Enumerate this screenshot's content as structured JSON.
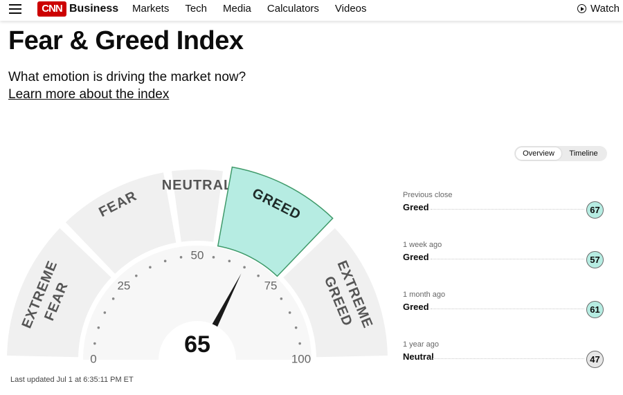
{
  "header": {
    "brand_mark": "CNN",
    "brand_text": "Business",
    "nav": [
      "Markets",
      "Tech",
      "Media",
      "Calculators",
      "Videos"
    ],
    "watch_label": "Watch"
  },
  "page": {
    "title": "Fear & Greed Index",
    "subtitle": "What emotion is driving the market now?",
    "learn_more": "Learn more about the index"
  },
  "toggle": {
    "overview": "Overview",
    "timeline": "Timeline",
    "active": "Overview"
  },
  "gauge": {
    "value": 65,
    "value_label": "65",
    "active_zone": "GREED",
    "zones": [
      {
        "from": 0,
        "to": 25,
        "label1": "EXTREME",
        "label2": "FEAR"
      },
      {
        "from": 25,
        "to": 45,
        "label1": "FEAR",
        "label2": ""
      },
      {
        "from": 45,
        "to": 55,
        "label1": "NEUTRAL",
        "label2": ""
      },
      {
        "from": 55,
        "to": 75,
        "label1": "GREED",
        "label2": ""
      },
      {
        "from": 75,
        "to": 100,
        "label1": "EXTREME",
        "label2": "GREED"
      }
    ],
    "ticks": [
      "0",
      "25",
      "50",
      "75",
      "100"
    ],
    "colors": {
      "zone": "#f0f0f0",
      "active": "#b6ece2",
      "active_stroke": "#3f9a6a",
      "needle": "#1a1a1a"
    }
  },
  "history": [
    {
      "label": "Previous close",
      "rating": "Greed",
      "value": "67",
      "kind": "greed"
    },
    {
      "label": "1 week ago",
      "rating": "Greed",
      "value": "57",
      "kind": "greed"
    },
    {
      "label": "1 month ago",
      "rating": "Greed",
      "value": "61",
      "kind": "greed"
    },
    {
      "label": "1 year ago",
      "rating": "Neutral",
      "value": "47",
      "kind": "neutral"
    }
  ],
  "last_updated": "Last updated Jul 1 at 6:35:11 PM ET"
}
